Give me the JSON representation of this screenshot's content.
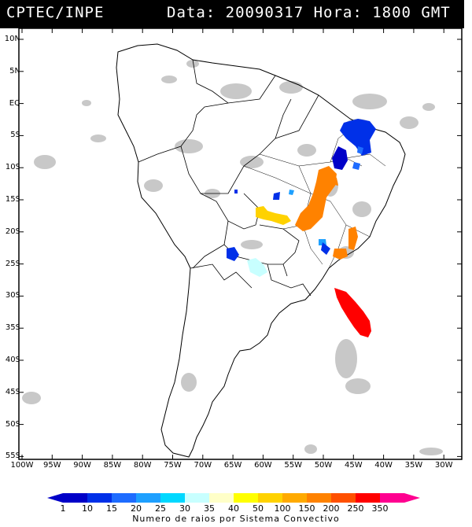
{
  "header": {
    "left": "CPTEC/INPE",
    "right": "Data: 20090317 Hora: 1800 GMT"
  },
  "map": {
    "lat_labels": [
      "10N",
      "5N",
      "EQ",
      "5S",
      "10S",
      "15S",
      "20S",
      "25S",
      "30S",
      "35S",
      "40S",
      "45S",
      "50S",
      "55S"
    ],
    "lon_labels": [
      "100W",
      "95W",
      "90W",
      "85W",
      "80W",
      "75W",
      "70W",
      "65W",
      "60W",
      "55W",
      "50W",
      "45W",
      "40W",
      "35W",
      "30W"
    ],
    "land_color": "#ffffff",
    "cloud_color": "#c8c8c8"
  },
  "legend": {
    "values": [
      "1",
      "10",
      "15",
      "20",
      "25",
      "30",
      "35",
      "40",
      "50",
      "100",
      "150",
      "200",
      "250",
      "350"
    ],
    "colors": [
      "#0000c8",
      "#0030e8",
      "#1e6cff",
      "#1ea0ff",
      "#00d8ff",
      "#c8ffff",
      "#ffffc8",
      "#ffff00",
      "#ffd200",
      "#ffaa00",
      "#ff8200",
      "#ff5000",
      "#ff0000",
      "#ff0090"
    ],
    "caption": "Numero de raios por Sistema Convectivo"
  }
}
